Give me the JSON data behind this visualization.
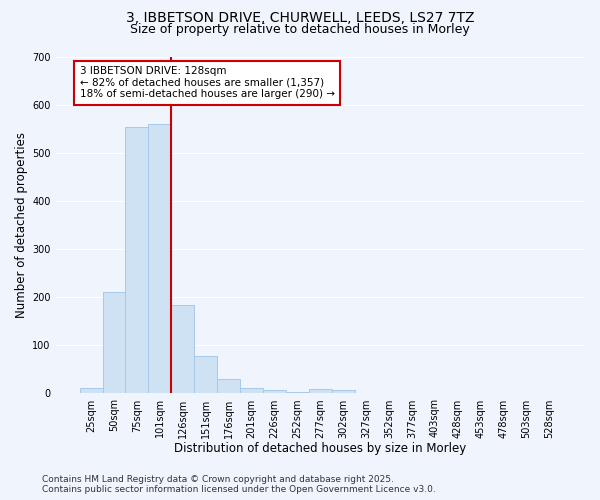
{
  "title_line1": "3, IBBETSON DRIVE, CHURWELL, LEEDS, LS27 7TZ",
  "title_line2": "Size of property relative to detached houses in Morley",
  "xlabel": "Distribution of detached houses by size in Morley",
  "ylabel": "Number of detached properties",
  "bar_color": "#cfe2f3",
  "bar_edge_color": "#a8c8e8",
  "categories": [
    "25sqm",
    "50sqm",
    "75sqm",
    "101sqm",
    "126sqm",
    "151sqm",
    "176sqm",
    "201sqm",
    "226sqm",
    "252sqm",
    "277sqm",
    "302sqm",
    "327sqm",
    "352sqm",
    "377sqm",
    "403sqm",
    "428sqm",
    "453sqm",
    "478sqm",
    "503sqm",
    "528sqm"
  ],
  "values": [
    11,
    210,
    553,
    560,
    183,
    78,
    30,
    12,
    8,
    4,
    10,
    8,
    2,
    0,
    0,
    0,
    0,
    1,
    0,
    0,
    0
  ],
  "ylim": [
    0,
    700
  ],
  "yticks": [
    0,
    100,
    200,
    300,
    400,
    500,
    600,
    700
  ],
  "vline_bin_index": 4,
  "annotation_text": "3 IBBETSON DRIVE: 128sqm\n← 82% of detached houses are smaller (1,357)\n18% of semi-detached houses are larger (290) →",
  "vline_color": "#cc0000",
  "background_color": "#f0f4fc",
  "grid_color": "#ffffff",
  "title_fontsize": 10,
  "subtitle_fontsize": 9,
  "axis_label_fontsize": 8.5,
  "tick_fontsize": 7,
  "annotation_fontsize": 7.5,
  "footer_fontsize": 6.5,
  "footer_text": "Contains HM Land Registry data © Crown copyright and database right 2025.\nContains public sector information licensed under the Open Government Licence v3.0."
}
